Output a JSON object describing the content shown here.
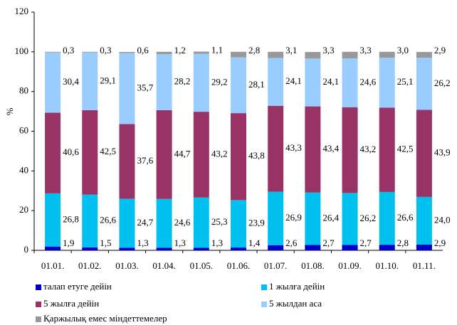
{
  "chart_data": {
    "type": "stacked_bar",
    "categories": [
      "01.01.",
      "01.02.",
      "01.03.",
      "01.04.",
      "01.05.",
      "01.06.",
      "01.07.",
      "01.08.",
      "01.09.",
      "01.10.",
      "01.11."
    ],
    "ylabel": "%",
    "ylim": [
      0,
      120
    ],
    "yticks": [
      0,
      20,
      40,
      60,
      80,
      100,
      120
    ],
    "series": [
      {
        "name": "талап етуге дейін",
        "color": "#0000cc",
        "values": [
          1.9,
          1.5,
          1.3,
          1.3,
          1.3,
          1.4,
          2.6,
          2.7,
          2.7,
          2.8,
          2.9
        ],
        "value_labels": [
          "1,9",
          "1,5",
          "1,3",
          "1,3",
          "1,3",
          "1,4",
          "2,6",
          "2,7",
          "2,7",
          "2,8",
          "2,9"
        ]
      },
      {
        "name": "1 жылға дейін",
        "color": "#00c0f0",
        "values": [
          26.8,
          26.6,
          24.7,
          24.6,
          25.3,
          23.9,
          26.9,
          26.4,
          26.2,
          26.6,
          24.0
        ],
        "value_labels": [
          "26,8",
          "26,6",
          "24,7",
          "24,6",
          "25,3",
          "23,9",
          "26,9",
          "26,4",
          "26,2",
          "26,6",
          "24,0"
        ]
      },
      {
        "name": "5 жылға дейін",
        "color": "#993366",
        "values": [
          40.6,
          42.5,
          37.6,
          44.7,
          43.2,
          43.8,
          43.3,
          43.4,
          43.2,
          42.5,
          43.9
        ],
        "value_labels": [
          "40,6",
          "42,5",
          "37,6",
          "44,7",
          "43,2",
          "43,8",
          "43,3",
          "43,4",
          "43,2",
          "42,5",
          "43,9"
        ]
      },
      {
        "name": "5 жылдан аса",
        "color": "#99ccff",
        "values": [
          30.4,
          29.1,
          35.7,
          28.2,
          29.2,
          28.1,
          24.1,
          24.1,
          24.6,
          25.1,
          26.2
        ],
        "value_labels": [
          "30,4",
          "29,1",
          "35,7",
          "28,2",
          "29,2",
          "28,1",
          "24,1",
          "24,1",
          "24,6",
          "25,1",
          "26,2"
        ]
      },
      {
        "name": "Қаржылық емес міндеттемелер",
        "color": "#999999",
        "values": [
          0.3,
          0.3,
          0.6,
          1.2,
          1.1,
          2.8,
          3.1,
          3.3,
          3.3,
          3.0,
          2.9
        ],
        "value_labels": [
          "0,3",
          "0,3",
          "0,6",
          "1,2",
          "1,1",
          "2,8",
          "3,1",
          "3,3",
          "3,3",
          "3,0",
          "2,9"
        ]
      }
    ]
  }
}
